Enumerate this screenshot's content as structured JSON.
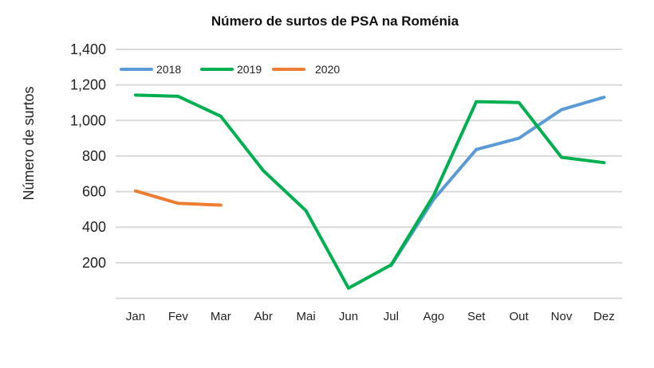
{
  "chart_data": {
    "type": "line",
    "title": "Número de surtos de PSA na Roménia",
    "xlabel": "",
    "ylabel": "Número de surtos",
    "categories": [
      "Jan",
      "Fev",
      "Mar",
      "Abr",
      "Mai",
      "Jun",
      "Jul",
      "Ago",
      "Set",
      "Out",
      "Nov",
      "Dez"
    ],
    "ylim": [
      0,
      1400
    ],
    "yticks": [
      200,
      400,
      600,
      800,
      1000,
      1200,
      1400
    ],
    "ytick_labels": [
      "200",
      "400",
      "600",
      "800",
      "1,000",
      "1,200",
      "1,400"
    ],
    "grid": true,
    "legend_position": "top-left",
    "series": [
      {
        "name": "2018",
        "color": "#5b9bd5",
        "values": [
          null,
          null,
          null,
          null,
          null,
          null,
          184,
          557,
          837,
          900,
          1061,
          1131
        ]
      },
      {
        "name": "2019",
        "color": "#00b050",
        "values": [
          1143,
          1136,
          1024,
          718,
          493,
          57,
          188,
          579,
          1106,
          1101,
          793,
          763
        ]
      },
      {
        "name": "2020",
        "color": "#ed7d31",
        "values": [
          604,
          534,
          524,
          null,
          null,
          null,
          null,
          null,
          null,
          null,
          null,
          null
        ]
      }
    ]
  }
}
